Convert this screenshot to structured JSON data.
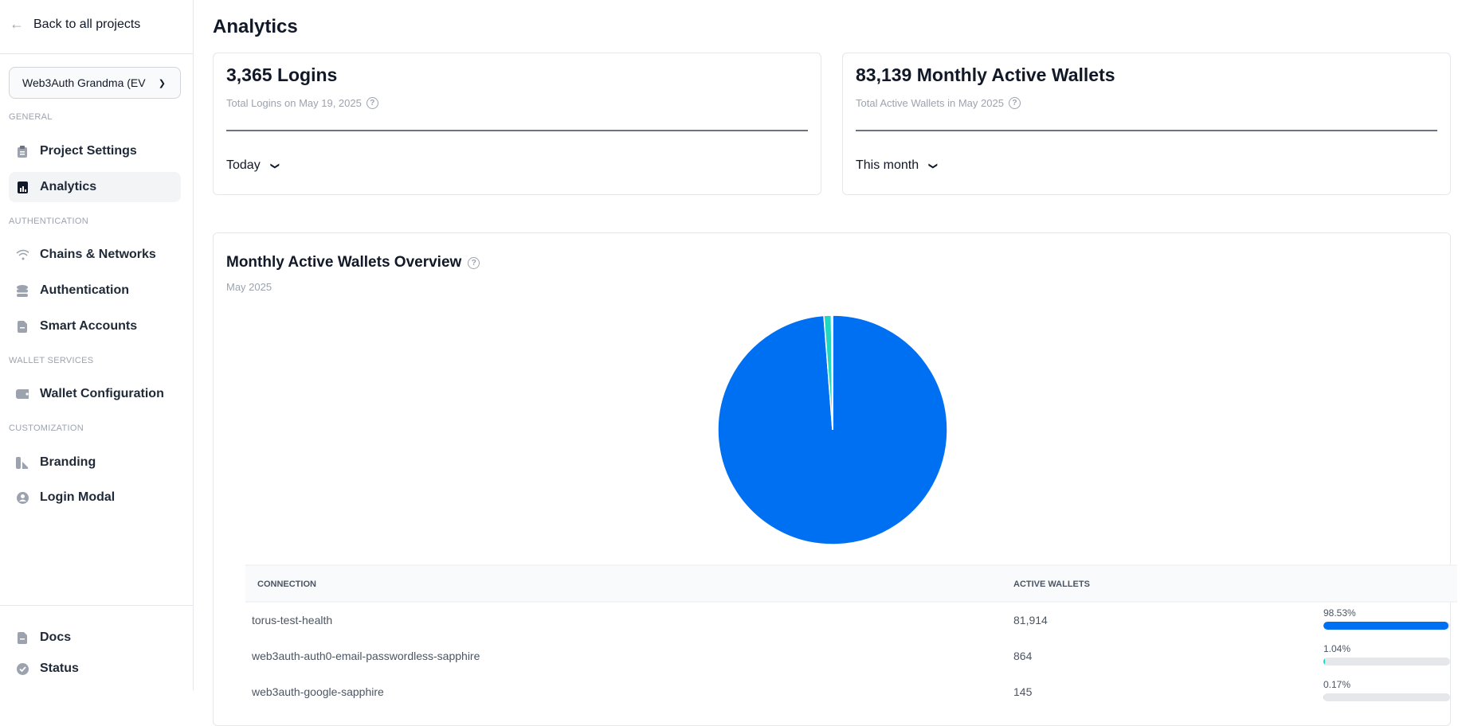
{
  "sidebar": {
    "back": "Back to all projects",
    "project": "Web3Auth Grandma (EV",
    "sections": {
      "general": "GENERAL",
      "authentication": "AUTHENTICATION",
      "wallet_services": "WALLET SERVICES",
      "customization": "CUSTOMIZATION"
    },
    "items": [
      {
        "label": "Project Settings",
        "icon": "clipboard-icon"
      },
      {
        "label": "Analytics",
        "icon": "chart-icon",
        "active": true
      },
      {
        "label": "Chains & Networks",
        "icon": "wifi-icon"
      },
      {
        "label": "Authentication",
        "icon": "database-icon"
      },
      {
        "label": "Smart Accounts",
        "icon": "document-icon"
      },
      {
        "label": "Wallet Configuration",
        "icon": "wallet-icon"
      },
      {
        "label": "Branding",
        "icon": "branding-icon"
      },
      {
        "label": "Login Modal",
        "icon": "user-circle-icon"
      }
    ],
    "footer": [
      {
        "label": "Docs",
        "icon": "document-icon"
      },
      {
        "label": "Status",
        "icon": "check-circle-icon"
      }
    ]
  },
  "main": {
    "title": "Analytics",
    "cards": [
      {
        "title": "3,365 Logins",
        "subtitle": "Total Logins on May 19, 2025",
        "range": "Today"
      },
      {
        "title": "83,139 Monthly Active Wallets",
        "subtitle": "Total Active Wallets in May 2025",
        "range": "This month"
      }
    ],
    "overview": {
      "title": "Monthly Active Wallets Overview",
      "subtitle": "May 2025"
    },
    "table": {
      "headers": [
        "CONNECTION",
        "ACTIVE WALLETS"
      ],
      "rows": [
        {
          "connection": "torus-test-health",
          "wallets": "81,914",
          "percent": "98.53%",
          "value": 98.53,
          "color": "#0070f3"
        },
        {
          "connection": "web3auth-auth0-email-passwordless-sapphire",
          "wallets": "864",
          "percent": "1.04%",
          "value": 1.04,
          "color": "#1ed8c0"
        },
        {
          "connection": "web3auth-google-sapphire",
          "wallets": "145",
          "percent": "0.17%",
          "value": 0.17,
          "color": "#c7d2fe"
        }
      ]
    }
  },
  "chart_data": {
    "type": "pie",
    "categories": [
      "torus-test-health",
      "web3auth-auth0-email-passwordless-sapphire",
      "web3auth-google-sapphire"
    ],
    "values": [
      81914,
      864,
      145
    ],
    "percent": [
      98.53,
      1.04,
      0.17
    ],
    "colors": [
      "#0070f3",
      "#1ed8c0",
      "#c7d2fe"
    ]
  }
}
